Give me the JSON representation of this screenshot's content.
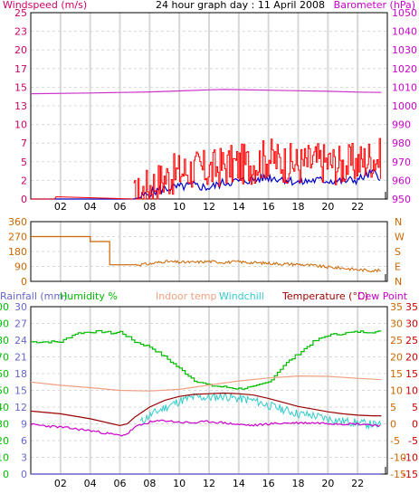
{
  "title": "24 hour graph day : 11 April 2008",
  "colors": {
    "windspeed_label": "#cc0066",
    "barometer_label": "#cc00cc",
    "wind": "#ff0000",
    "wind_avg": "#0000cc",
    "barometer": "#cc33cc",
    "direction": "#cc6600",
    "rainfall": "#6666cc",
    "humidity": "#00bb00",
    "indoor": "#f0a080",
    "windchill": "#33cccc",
    "temperature": "#990000",
    "dewpoint": "#cc00cc",
    "temp_axis": "#cc6600",
    "grid": "#d8d8d8"
  },
  "chart_data": [
    {
      "type": "line",
      "name": "wind-barometer",
      "title": "24 hour graph day : 11 April 2008",
      "left_axis_label": "Windspeed (m/s)",
      "right_axis_label": "Barometer (hPa)",
      "left_ticks": [
        "0",
        "2",
        "5",
        "7",
        "10",
        "13",
        "15",
        "17",
        "20",
        "23",
        "25"
      ],
      "right_ticks": [
        "950",
        "960",
        "970",
        "980",
        "990",
        "1000",
        "1010",
        "1020",
        "1030",
        "1040",
        "1050"
      ],
      "ylim_left": [
        0,
        25
      ],
      "ylim_right": [
        950,
        1050
      ],
      "xlim": [
        0,
        24
      ],
      "x_ticks": [
        "02",
        "04",
        "06",
        "08",
        "10",
        "12",
        "14",
        "16",
        "18",
        "20",
        "22"
      ],
      "series": [
        {
          "key": "barometer",
          "axis": "right",
          "x": [
            0,
            4,
            8,
            10,
            12,
            13,
            14,
            16,
            18,
            20,
            22,
            23.6
          ],
          "y": [
            1006.5,
            1006.9,
            1007.5,
            1008,
            1008.6,
            1008.8,
            1008.7,
            1008.4,
            1008.1,
            1007.8,
            1007.4,
            1007.2
          ]
        },
        {
          "key": "wind_avg",
          "axis": "left",
          "x": [
            0,
            6.9,
            7.4,
            8,
            9,
            10,
            11,
            12,
            13,
            14,
            15,
            16,
            17,
            18,
            19,
            20,
            21,
            22,
            23,
            23.6
          ],
          "y": [
            0,
            0,
            0.2,
            0.8,
            1.4,
            1.6,
            1.8,
            1.5,
            2.2,
            2.4,
            2.6,
            2.9,
            2.7,
            2.2,
            2.5,
            2.5,
            2.4,
            2.6,
            3.5,
            3.0
          ]
        },
        {
          "key": "wind",
          "axis": "left",
          "x": [
            0,
            1.6,
            1.7,
            6.9,
            7.3,
            8,
            9,
            10,
            11,
            12,
            13,
            14,
            15,
            16,
            17,
            18,
            19,
            20,
            21,
            22,
            23,
            23.6
          ],
          "y": [
            0,
            0,
            0.3,
            0,
            0.6,
            1.8,
            2.8,
            3.6,
            4.0,
            3.8,
            4.5,
            4.6,
            4.8,
            5.6,
            4.9,
            4.6,
            5.0,
            4.9,
            4.5,
            4.9,
            5.6,
            5.4
          ]
        }
      ]
    },
    {
      "type": "line",
      "name": "wind-direction",
      "left_ticks": [
        "0",
        "90",
        "180",
        "270",
        "360"
      ],
      "right_ticks": [
        "N",
        "E",
        "S",
        "W",
        "N"
      ],
      "ylim": [
        0,
        360
      ],
      "xlim": [
        0,
        24
      ],
      "series": [
        {
          "key": "direction",
          "x": [
            0,
            2,
            4,
            5.3,
            5.31,
            7,
            8,
            9,
            10,
            11,
            12,
            13,
            14,
            15,
            16,
            17,
            18,
            19,
            20,
            21,
            22,
            23,
            23.6
          ],
          "y": [
            270,
            270,
            240,
            240,
            100,
            100,
            105,
            120,
            115,
            115,
            120,
            115,
            118,
            112,
            110,
            105,
            103,
            95,
            85,
            80,
            70,
            65,
            65
          ]
        }
      ]
    },
    {
      "type": "line",
      "name": "temperature-humidity",
      "legend": [
        "Rainfall (mm)",
        "Humidity %",
        "Indoor temp",
        "Windchill",
        "Temperature (°C)",
        "Dew Point"
      ],
      "rain_ticks": [
        "0",
        "3",
        "6",
        "9",
        "12",
        "15",
        "18",
        "21",
        "24",
        "27",
        "30"
      ],
      "humidity_ticks": [
        "0",
        "10",
        "20",
        "30",
        "40",
        "50",
        "60",
        "70",
        "80",
        "90",
        "100"
      ],
      "temp_left_ticks": [
        "-15",
        "-10",
        "-5",
        "0",
        "5",
        "10",
        "15",
        "20",
        "25",
        "30",
        "35"
      ],
      "temp_right_ticks": [
        "-15",
        "-10",
        "-5",
        "0",
        "5",
        "10",
        "15",
        "20",
        "25",
        "30",
        "35"
      ],
      "ylim_temp": [
        -15,
        35
      ],
      "ylim_humidity": [
        0,
        100
      ],
      "xlim": [
        0,
        24
      ],
      "series": [
        {
          "key": "rainfall",
          "axis": "temp",
          "x": [
            0,
            23.6
          ],
          "y": [
            -15,
            -15
          ]
        },
        {
          "key": "humidity",
          "axis": "humidity",
          "x": [
            0,
            2,
            3,
            4,
            5,
            5.5,
            6,
            7,
            8,
            9,
            10,
            11,
            12,
            13,
            14,
            15,
            16,
            17,
            18,
            19,
            20,
            21,
            22,
            23,
            23.6
          ],
          "y": [
            79,
            79,
            84,
            85,
            85,
            84,
            85,
            79,
            76,
            70,
            63,
            56,
            53,
            52,
            51,
            52,
            55,
            65,
            72,
            79,
            83,
            84,
            85,
            85,
            85
          ]
        },
        {
          "key": "indoor",
          "axis": "temp",
          "x": [
            0,
            2,
            4,
            6,
            8,
            10,
            12,
            14,
            16,
            18,
            20,
            22,
            23.6
          ],
          "y": [
            12.5,
            11.5,
            10.8,
            10,
            9.8,
            10.3,
            11.6,
            12.8,
            13.7,
            14.3,
            14.2,
            13.6,
            13.2
          ]
        },
        {
          "key": "windchill",
          "axis": "temp",
          "x": [
            7.4,
            8,
            9,
            10,
            11,
            12,
            13,
            14,
            15,
            16,
            17,
            18,
            19,
            20,
            21,
            22,
            23,
            23.6
          ],
          "y": [
            0.5,
            2.5,
            4.8,
            6.8,
            8.0,
            7.8,
            8.3,
            7.5,
            7.0,
            5.5,
            4.3,
            3.0,
            2.5,
            1.5,
            0.8,
            0.3,
            -0.2,
            -0.5
          ]
        },
        {
          "key": "temperature",
          "axis": "temp",
          "x": [
            0,
            2,
            4,
            6,
            6.5,
            7,
            8,
            9,
            10,
            11,
            12,
            13,
            14,
            15,
            16,
            17,
            18,
            19,
            20,
            21,
            22,
            23,
            23.6
          ],
          "y": [
            3.8,
            3.0,
            1.5,
            -0.5,
            0,
            2.0,
            5.0,
            7.0,
            8.2,
            8.8,
            9.0,
            9.2,
            9.0,
            8.6,
            7.6,
            6.4,
            5.2,
            4.4,
            3.6,
            3.0,
            2.6,
            2.4,
            2.4
          ]
        },
        {
          "key": "dewpoint",
          "axis": "temp",
          "x": [
            0,
            2,
            4,
            6,
            6.5,
            7,
            8,
            9,
            10,
            11,
            12,
            13,
            14,
            15,
            16,
            17,
            18,
            19,
            20,
            21,
            22,
            23,
            23.6
          ],
          "y": [
            -0.2,
            -1.0,
            -2.0,
            -3.5,
            -3.0,
            -1.0,
            0.5,
            1.0,
            0.5,
            0.3,
            0.7,
            0.3,
            -0.2,
            -0.5,
            0,
            0.2,
            0.3,
            0.3,
            0.2,
            0,
            0,
            -0.3,
            -0.5
          ]
        }
      ]
    }
  ]
}
